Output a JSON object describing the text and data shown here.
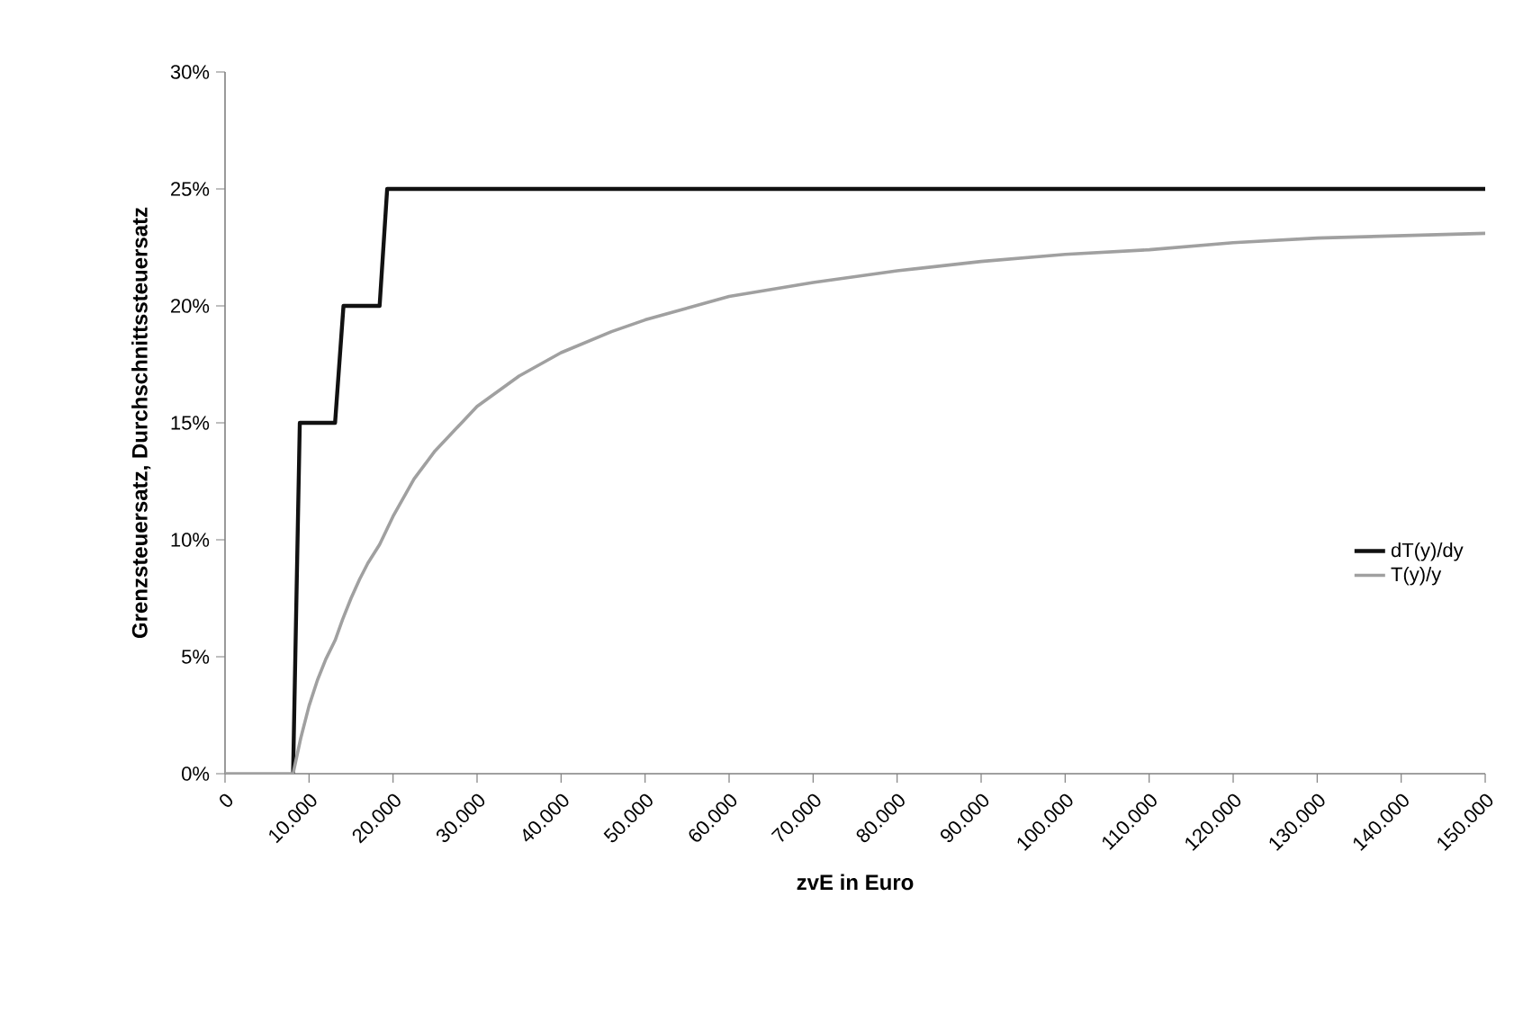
{
  "chart_data": {
    "type": "line",
    "xlabel": "zvE in Euro",
    "ylabel": "Grenzsteuersatz, Durchschnittssteuersatz",
    "xlim": [
      0,
      150000
    ],
    "ylim": [
      0,
      30
    ],
    "xticks": [
      0,
      {
        "value": 10000,
        "label": "10.000"
      },
      {
        "value": 20000,
        "label": "20.000"
      },
      {
        "value": 30000,
        "label": "30.000"
      },
      {
        "value": 40000,
        "label": "40.000"
      },
      {
        "value": 50000,
        "label": "50.000"
      },
      {
        "value": 60000,
        "label": "60.000"
      },
      {
        "value": 70000,
        "label": "70.000"
      },
      {
        "value": 80000,
        "label": "80.000"
      },
      {
        "value": 90000,
        "label": "90.000"
      },
      {
        "value": 100000,
        "label": "100.000"
      },
      {
        "value": 110000,
        "label": "110.000"
      },
      {
        "value": 120000,
        "label": "120.000"
      },
      {
        "value": 130000,
        "label": "130.000"
      },
      {
        "value": 140000,
        "label": "140.000"
      },
      {
        "value": 150000,
        "label": "150.000"
      }
    ],
    "yticks": [
      {
        "value": 0,
        "label": "0%"
      },
      {
        "value": 5,
        "label": "5%"
      },
      {
        "value": 10,
        "label": "10%"
      },
      {
        "value": 15,
        "label": "15%"
      },
      {
        "value": 20,
        "label": "20%"
      },
      {
        "value": 25,
        "label": "25%"
      },
      {
        "value": 30,
        "label": "30%"
      }
    ],
    "series": [
      {
        "name": "dT(y)/dy",
        "color": "#111111",
        "x": [
          8100,
          8900,
          13100,
          14100,
          18400,
          19300,
          150000
        ],
        "values": [
          0,
          15,
          15,
          20,
          20,
          25,
          25
        ]
      },
      {
        "name": "T(y)/y",
        "color": "#a0a0a0",
        "x": [
          0,
          8100,
          9000,
          10000,
          11000,
          12000,
          13100,
          14000,
          15000,
          16000,
          17000,
          18400,
          20000,
          22500,
          25000,
          30000,
          35000,
          40000,
          46000,
          50000,
          60000,
          70000,
          80000,
          90000,
          100000,
          110000,
          120000,
          130000,
          140000,
          150000
        ],
        "values": [
          0,
          0,
          1.5,
          2.9,
          4.0,
          4.9,
          5.7,
          6.6,
          7.5,
          8.3,
          9.0,
          9.8,
          11.0,
          12.6,
          13.8,
          15.7,
          17.0,
          18.0,
          18.9,
          19.4,
          20.4,
          21.0,
          21.5,
          21.9,
          22.2,
          22.4,
          22.7,
          22.9,
          23.0,
          23.1
        ]
      }
    ],
    "legend": "right",
    "grid": false,
    "marker": "none",
    "line_style": "solid"
  }
}
